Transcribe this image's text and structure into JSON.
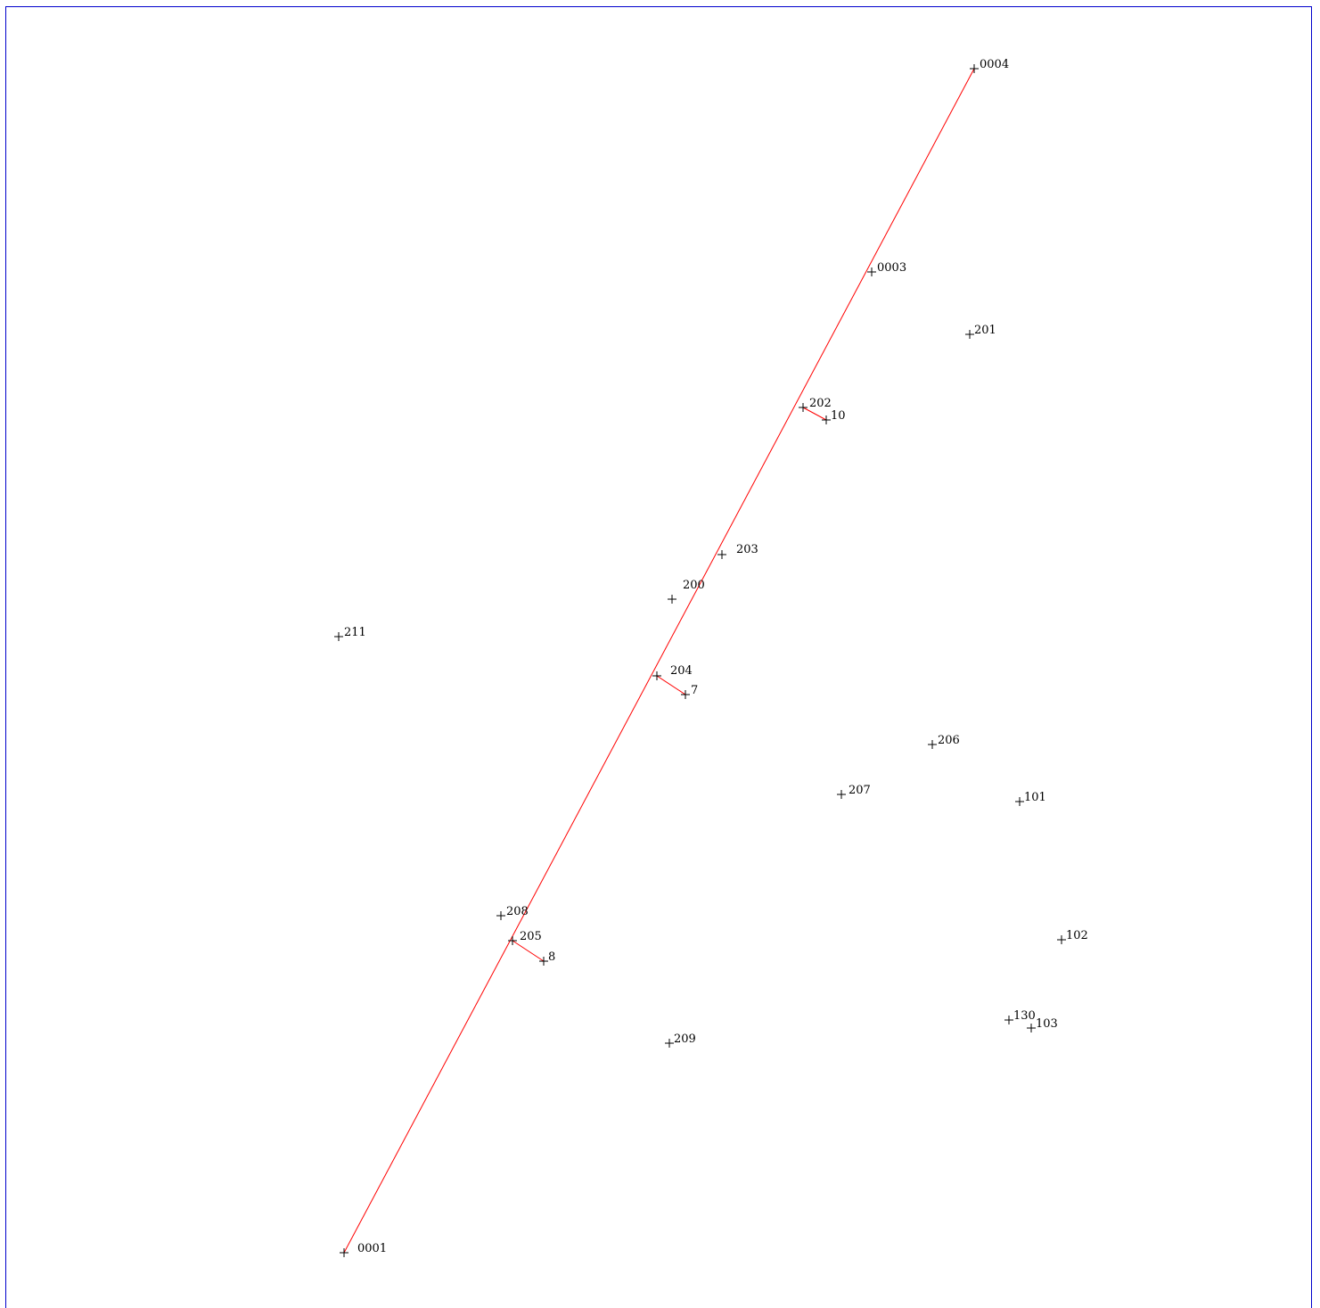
{
  "colors": {
    "frame": "#0000cc",
    "traverse_line": "#ff0000",
    "point_marker": "#000000"
  },
  "points": [
    {
      "id": "0004",
      "label": "0004"
    },
    {
      "id": "0003",
      "label": "0003"
    },
    {
      "id": "201",
      "label": "201"
    },
    {
      "id": "202",
      "label": "202"
    },
    {
      "id": "10",
      "label": "10"
    },
    {
      "id": "203",
      "label": "203"
    },
    {
      "id": "200",
      "label": "200"
    },
    {
      "id": "211",
      "label": "211"
    },
    {
      "id": "204",
      "label": "204"
    },
    {
      "id": "7",
      "label": "7"
    },
    {
      "id": "206",
      "label": "206"
    },
    {
      "id": "207",
      "label": "207"
    },
    {
      "id": "101",
      "label": "101"
    },
    {
      "id": "208",
      "label": "208"
    },
    {
      "id": "205",
      "label": "205"
    },
    {
      "id": "8",
      "label": "8"
    },
    {
      "id": "102",
      "label": "102"
    },
    {
      "id": "130",
      "label": "130"
    },
    {
      "id": "103",
      "label": "103"
    },
    {
      "id": "209",
      "label": "209"
    },
    {
      "id": "0001",
      "label": "0001"
    }
  ],
  "lines": [
    {
      "from": "0001",
      "to": "0004"
    },
    {
      "from": "202",
      "to": "10"
    },
    {
      "from": "204",
      "to": "7"
    },
    {
      "from": "205",
      "to": "8"
    }
  ]
}
